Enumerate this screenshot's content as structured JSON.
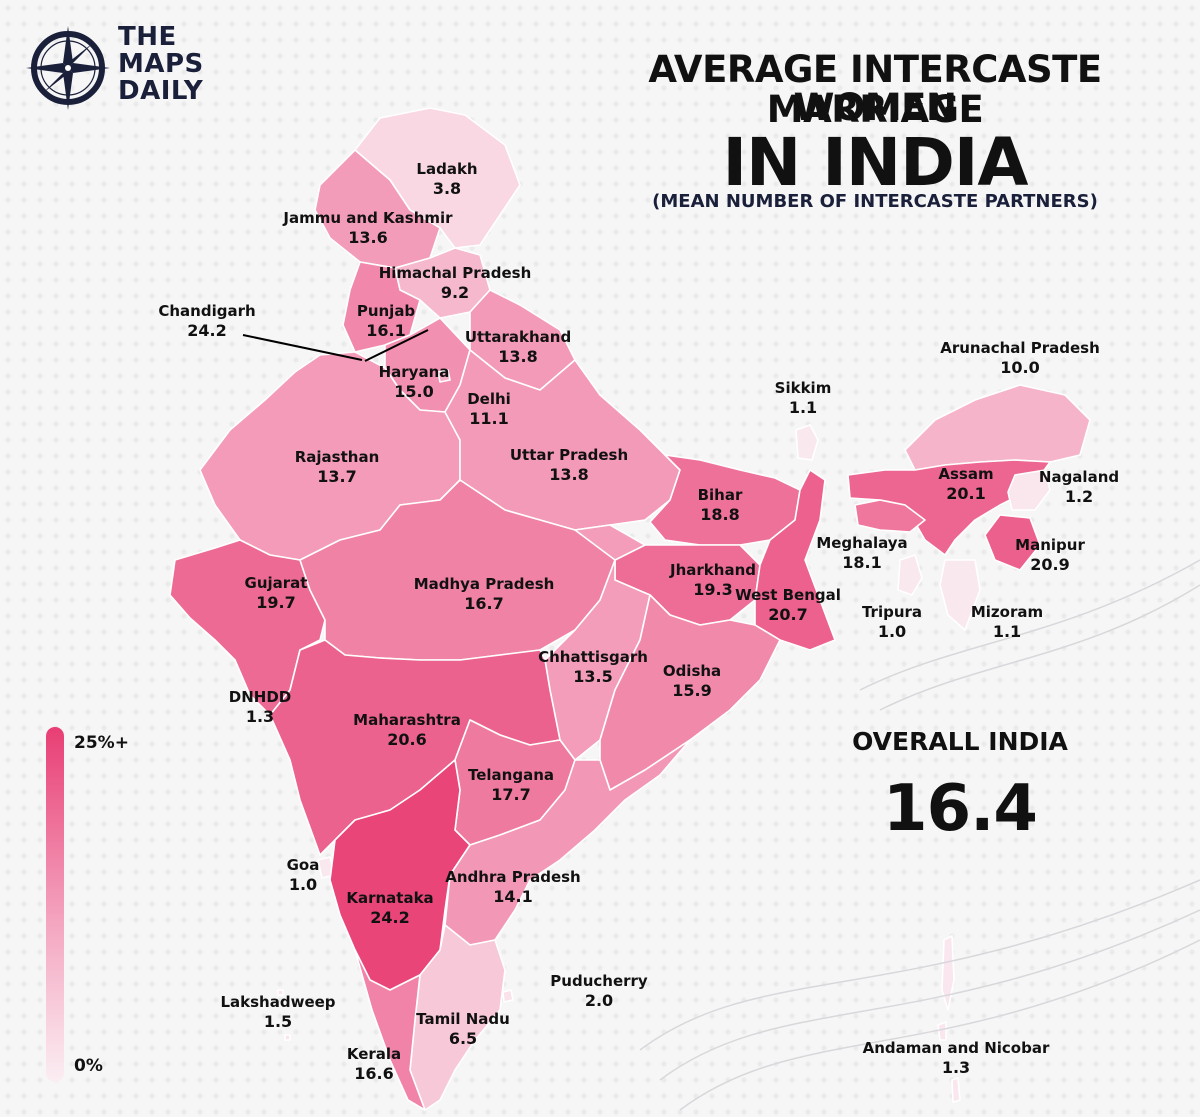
{
  "brand": {
    "line1": "THE",
    "line2": "MAPS",
    "line3": "DAILY"
  },
  "title": {
    "line1": "AVERAGE INTERCASTE MARRIAGE",
    "line2": "WOMEN",
    "line3": "IN INDIA",
    "subtitle": "(MEAN NUMBER OF INTERCASTE PARTNERS)"
  },
  "overall": {
    "label": "OVERALL INDIA",
    "value": "16.4"
  },
  "legend": {
    "max_label": "25%+",
    "min_label": "0%"
  },
  "colors": {
    "high": "#e83e74",
    "mid": "#f4a5c0",
    "low": "#fbeef3",
    "border": "#ffffff"
  },
  "regions": [
    {
      "name": "Ladakh",
      "value": "3.8"
    },
    {
      "name": "Jammu and Kashmir",
      "value": "13.6"
    },
    {
      "name": "Himachal Pradesh",
      "value": "9.2"
    },
    {
      "name": "Punjab",
      "value": "16.1"
    },
    {
      "name": "Chandigarh",
      "value": "24.2"
    },
    {
      "name": "Uttarakhand",
      "value": "13.8"
    },
    {
      "name": "Haryana",
      "value": "15.0"
    },
    {
      "name": "Delhi",
      "value": "11.1"
    },
    {
      "name": "Rajasthan",
      "value": "13.7"
    },
    {
      "name": "Uttar Pradesh",
      "value": "13.8"
    },
    {
      "name": "Bihar",
      "value": "18.8"
    },
    {
      "name": "Sikkim",
      "value": "1.1"
    },
    {
      "name": "Arunachal Pradesh",
      "value": "10.0"
    },
    {
      "name": "Assam",
      "value": "20.1"
    },
    {
      "name": "Nagaland",
      "value": "1.2"
    },
    {
      "name": "Meghalaya",
      "value": "18.1"
    },
    {
      "name": "Manipur",
      "value": "20.9"
    },
    {
      "name": "Tripura",
      "value": "1.0"
    },
    {
      "name": "Mizoram",
      "value": "1.1"
    },
    {
      "name": "Gujarat",
      "value": "19.7"
    },
    {
      "name": "Madhya Pradesh",
      "value": "16.7"
    },
    {
      "name": "Jharkhand",
      "value": "19.3"
    },
    {
      "name": "West Bengal",
      "value": "20.7"
    },
    {
      "name": "Chhattisgarh",
      "value": "13.5"
    },
    {
      "name": "Odisha",
      "value": "15.9"
    },
    {
      "name": "DNHDD",
      "value": "1.3"
    },
    {
      "name": "Maharashtra",
      "value": "20.6"
    },
    {
      "name": "Telangana",
      "value": "17.7"
    },
    {
      "name": "Goa",
      "value": "1.0"
    },
    {
      "name": "Karnataka",
      "value": "24.2"
    },
    {
      "name": "Andhra Pradesh",
      "value": "14.1"
    },
    {
      "name": "Puducherry",
      "value": "2.0"
    },
    {
      "name": "Lakshadweep",
      "value": "1.5"
    },
    {
      "name": "Tamil Nadu",
      "value": "6.5"
    },
    {
      "name": "Kerala",
      "value": "16.6"
    },
    {
      "name": "Andaman and Nicobar",
      "value": "1.3"
    }
  ]
}
